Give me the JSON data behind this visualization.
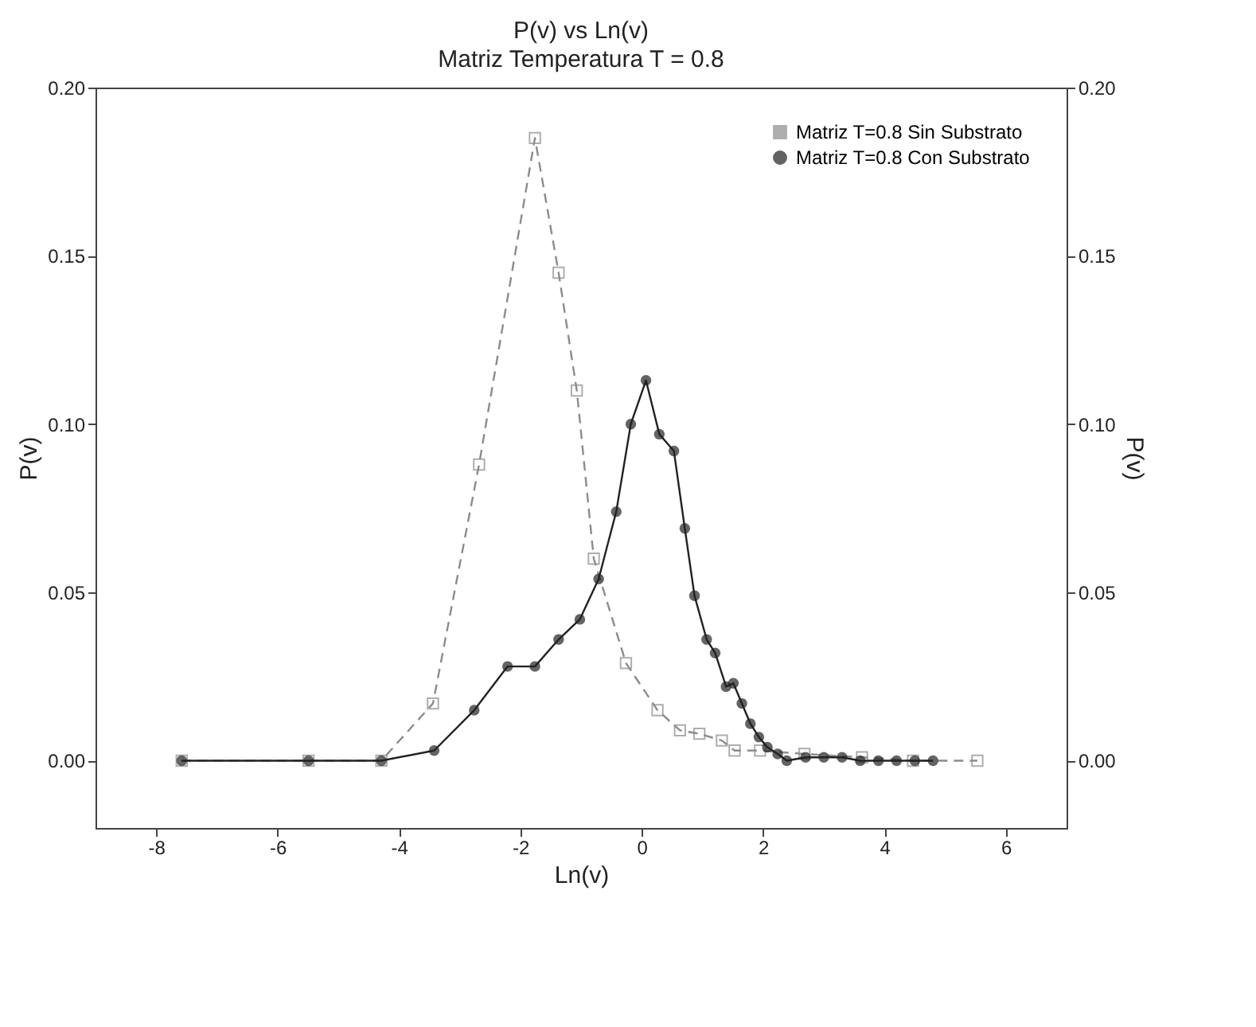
{
  "chart_data": {
    "type": "line",
    "title": "P(v) vs Ln(v)",
    "subtitle": "Matriz Temperatura T = 0.8",
    "xlabel": "Ln(v)",
    "ylabel": "P(v)",
    "y2label": "P(v)",
    "xlim": [
      -9,
      7
    ],
    "xticks": [
      -8,
      -6,
      -4,
      -2,
      0,
      2,
      4,
      6
    ],
    "ylim": [
      -0.02,
      0.2
    ],
    "yticks": [
      {
        "value": 0,
        "label": "0.00"
      },
      {
        "value": 0.05,
        "label": "0.05"
      },
      {
        "value": 0.1,
        "label": "0.10"
      },
      {
        "value": 0.15,
        "label": "0.15"
      },
      {
        "value": 0.2,
        "label": "0.20"
      }
    ],
    "y2lim": [
      -0.02,
      0.2
    ],
    "y2ticks": [
      {
        "value": 0,
        "label": "0.00"
      },
      {
        "value": 0.05,
        "label": "0.05"
      },
      {
        "value": 0.1,
        "label": "0.10"
      },
      {
        "value": 0.15,
        "label": "0.15"
      },
      {
        "value": 0.2,
        "label": "0.20"
      }
    ],
    "legend": "top right",
    "series": [
      {
        "name": "Matriz T=0.8 Sin Substrato",
        "color": "#8c8c8c",
        "marker": "square",
        "line_style": "dashed",
        "x": [
          -7.58,
          -5.49,
          -4.29,
          -3.44,
          -2.68,
          -1.76,
          -1.37,
          -1.07,
          -0.79,
          -0.26,
          0.26,
          0.63,
          0.95,
          1.32,
          1.53,
          1.95,
          2.68,
          3.63,
          4.47,
          5.53
        ],
        "values": [
          0,
          0,
          0,
          0.017,
          0.088,
          0.185,
          0.145,
          0.11,
          0.06,
          0.029,
          0.015,
          0.009,
          0.008,
          0.006,
          0.003,
          0.003,
          0.002,
          0.001,
          0,
          0
        ]
      },
      {
        "name": "Matriz T=0.8 Con Substrato",
        "color": "#222222",
        "marker": "circle",
        "line_style": "solid",
        "x": [
          -7.58,
          -5.49,
          -4.29,
          -3.42,
          -2.76,
          -2.21,
          -1.76,
          -1.37,
          -1.02,
          -0.71,
          -0.42,
          -0.18,
          0.07,
          0.29,
          0.53,
          0.71,
          0.87,
          1.07,
          1.21,
          1.39,
          1.51,
          1.65,
          1.79,
          1.93,
          2.07,
          2.24,
          2.39,
          2.7,
          3.0,
          3.3,
          3.6,
          3.9,
          4.2,
          4.5,
          4.8
        ],
        "values": [
          0,
          0,
          0,
          0.003,
          0.015,
          0.028,
          0.028,
          0.036,
          0.042,
          0.054,
          0.074,
          0.1,
          0.113,
          0.097,
          0.092,
          0.069,
          0.049,
          0.036,
          0.032,
          0.022,
          0.023,
          0.017,
          0.011,
          0.007,
          0.004,
          0.002,
          0.0,
          0.001,
          0.001,
          0.001,
          0.0,
          0.0,
          0.0,
          0.0,
          0.0
        ]
      }
    ]
  }
}
